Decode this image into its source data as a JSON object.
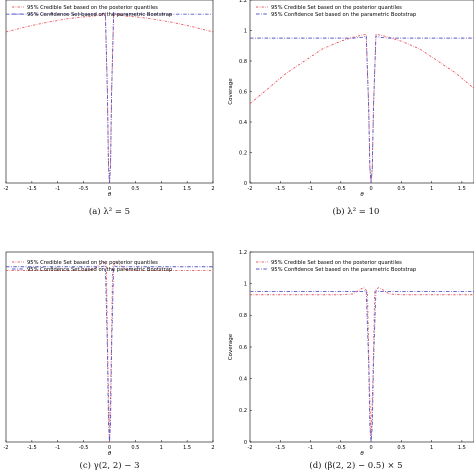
{
  "legend": {
    "credible": "95% Credible Set based on the posterior quantiles",
    "confidence": "95% Confidence Set based on the parametric Bootstrap"
  },
  "colors": {
    "credible": "#e8555e",
    "confidence": "#5a58c8",
    "frame": "#000000"
  },
  "chart_data": [
    {
      "type": "line",
      "caption": "(a) λ² = 5",
      "xlabel": "θ",
      "ylabel": "",
      "xlim": [
        -2,
        2
      ],
      "ylim": [
        0,
        1.2
      ],
      "xticks": [
        -2,
        -1.5,
        -1,
        -0.5,
        0,
        0.5,
        1,
        1.5,
        2
      ],
      "yticks": [],
      "series": [
        {
          "name": "95% Credible Set based on the posterior quantiles",
          "x": [
            -2,
            -1.6,
            -1.2,
            -0.8,
            -0.5,
            -0.3,
            -0.15,
            -0.08,
            -0.04,
            -0.02,
            0,
            0.02,
            0.04,
            0.08,
            0.15,
            0.3,
            0.5,
            0.8,
            1.2,
            1.6,
            2
          ],
          "y": [
            0.85,
            0.88,
            0.905,
            0.925,
            0.935,
            0.94,
            0.945,
            0.955,
            0.5,
            0.1,
            0.0,
            0.1,
            0.5,
            0.955,
            0.945,
            0.94,
            0.935,
            0.925,
            0.905,
            0.88,
            0.85
          ]
        },
        {
          "name": "95% Confidence Set based on the parametric Bootstrap",
          "x": [
            -2,
            -0.3,
            -0.15,
            -0.08,
            -0.04,
            -0.02,
            0,
            0.02,
            0.04,
            0.08,
            0.15,
            0.3,
            2
          ],
          "y": [
            0.95,
            0.95,
            0.95,
            0.96,
            0.5,
            0.1,
            0.0,
            0.1,
            0.5,
            0.96,
            0.95,
            0.95,
            0.95
          ]
        }
      ]
    },
    {
      "type": "line",
      "caption": "(b) λ² = 10",
      "xlabel": "θ",
      "ylabel": "Coverage",
      "xlim": [
        -2,
        1.7
      ],
      "ylim": [
        0,
        1.2
      ],
      "xticks": [
        -2,
        -1.5,
        -1,
        -0.5,
        0,
        0.5,
        1,
        1.5
      ],
      "yticks": [
        0,
        0.2,
        0.4,
        0.6,
        0.8,
        1,
        1.2
      ],
      "series": [
        {
          "name": "95% Credible Set based on the posterior quantiles",
          "x": [
            -2,
            -1.7,
            -1.4,
            -1.1,
            -0.8,
            -0.5,
            -0.3,
            -0.15,
            -0.08,
            -0.04,
            -0.02,
            0,
            0.02,
            0.04,
            0.08,
            0.15,
            0.3,
            0.5,
            0.8,
            1.1,
            1.4,
            1.7
          ],
          "y": [
            0.52,
            0.62,
            0.72,
            0.8,
            0.88,
            0.93,
            0.955,
            0.97,
            0.975,
            0.5,
            0.1,
            0.0,
            0.1,
            0.5,
            0.975,
            0.97,
            0.955,
            0.93,
            0.88,
            0.8,
            0.72,
            0.62
          ]
        },
        {
          "name": "95% Confidence Set based on the parametric Bootstrap",
          "x": [
            -2,
            -0.3,
            -0.15,
            -0.08,
            -0.04,
            -0.02,
            0,
            0.02,
            0.04,
            0.08,
            0.15,
            0.3,
            1.7
          ],
          "y": [
            0.95,
            0.95,
            0.955,
            0.965,
            0.5,
            0.1,
            0.0,
            0.1,
            0.5,
            0.965,
            0.955,
            0.95,
            0.95
          ]
        }
      ]
    },
    {
      "type": "line",
      "caption": "(c) γ(2, 2) − 3",
      "xlabel": "θ",
      "ylabel": "",
      "xlim": [
        -2,
        2
      ],
      "ylim": [
        0,
        1.2
      ],
      "xticks": [
        -2,
        -1.5,
        -1,
        -0.5,
        0,
        0.5,
        1,
        1.5,
        2
      ],
      "yticks": [],
      "series": [
        {
          "name": "95% Credible Set based on the posterior quantiles",
          "x": [
            -2,
            -0.5,
            -0.3,
            -0.2,
            -0.12,
            -0.06,
            -0.03,
            0,
            0.03,
            0.06,
            0.12,
            0.2,
            0.3,
            0.5,
            2
          ],
          "y": [
            0.93,
            0.93,
            0.935,
            0.96,
            0.98,
            0.95,
            0.4,
            0.0,
            0.4,
            0.95,
            0.98,
            0.96,
            0.935,
            0.93,
            0.93
          ]
        },
        {
          "name": "95% Confidence Set based on the parametric Bootstrap",
          "x": [
            -2,
            -0.3,
            -0.15,
            -0.08,
            -0.04,
            -0.02,
            0,
            0.02,
            0.04,
            0.08,
            0.15,
            0.3,
            2
          ],
          "y": [
            0.95,
            0.95,
            0.95,
            0.955,
            0.5,
            0.1,
            0.0,
            0.1,
            0.5,
            0.955,
            0.95,
            0.95,
            0.95
          ]
        }
      ]
    },
    {
      "type": "line",
      "caption": "(d) (β(2, 2) − 0.5) × 5",
      "xlabel": "θ",
      "ylabel": "Coverage",
      "xlim": [
        -2,
        1.7
      ],
      "ylim": [
        0,
        1.2
      ],
      "xticks": [
        -2,
        -1.5,
        -1,
        -0.5,
        0,
        0.5,
        1,
        1.5
      ],
      "yticks": [
        0,
        0.2,
        0.4,
        0.6,
        0.8,
        1,
        1.2
      ],
      "series": [
        {
          "name": "95% Credible Set based on the posterior quantiles",
          "x": [
            -2,
            -0.5,
            -0.3,
            -0.2,
            -0.12,
            -0.06,
            -0.03,
            0,
            0.03,
            0.06,
            0.12,
            0.2,
            0.3,
            0.5,
            1.7
          ],
          "y": [
            0.93,
            0.93,
            0.935,
            0.96,
            0.975,
            0.95,
            0.4,
            0.0,
            0.4,
            0.95,
            0.975,
            0.96,
            0.935,
            0.93,
            0.93
          ]
        },
        {
          "name": "95% Confidence Set based on the parametric Bootstrap",
          "x": [
            -2,
            -0.3,
            -0.15,
            -0.08,
            -0.04,
            -0.02,
            0,
            0.02,
            0.04,
            0.08,
            0.15,
            0.3,
            1.7
          ],
          "y": [
            0.95,
            0.95,
            0.95,
            0.955,
            0.5,
            0.1,
            0.0,
            0.1,
            0.5,
            0.955,
            0.95,
            0.95,
            0.95
          ]
        }
      ]
    }
  ]
}
